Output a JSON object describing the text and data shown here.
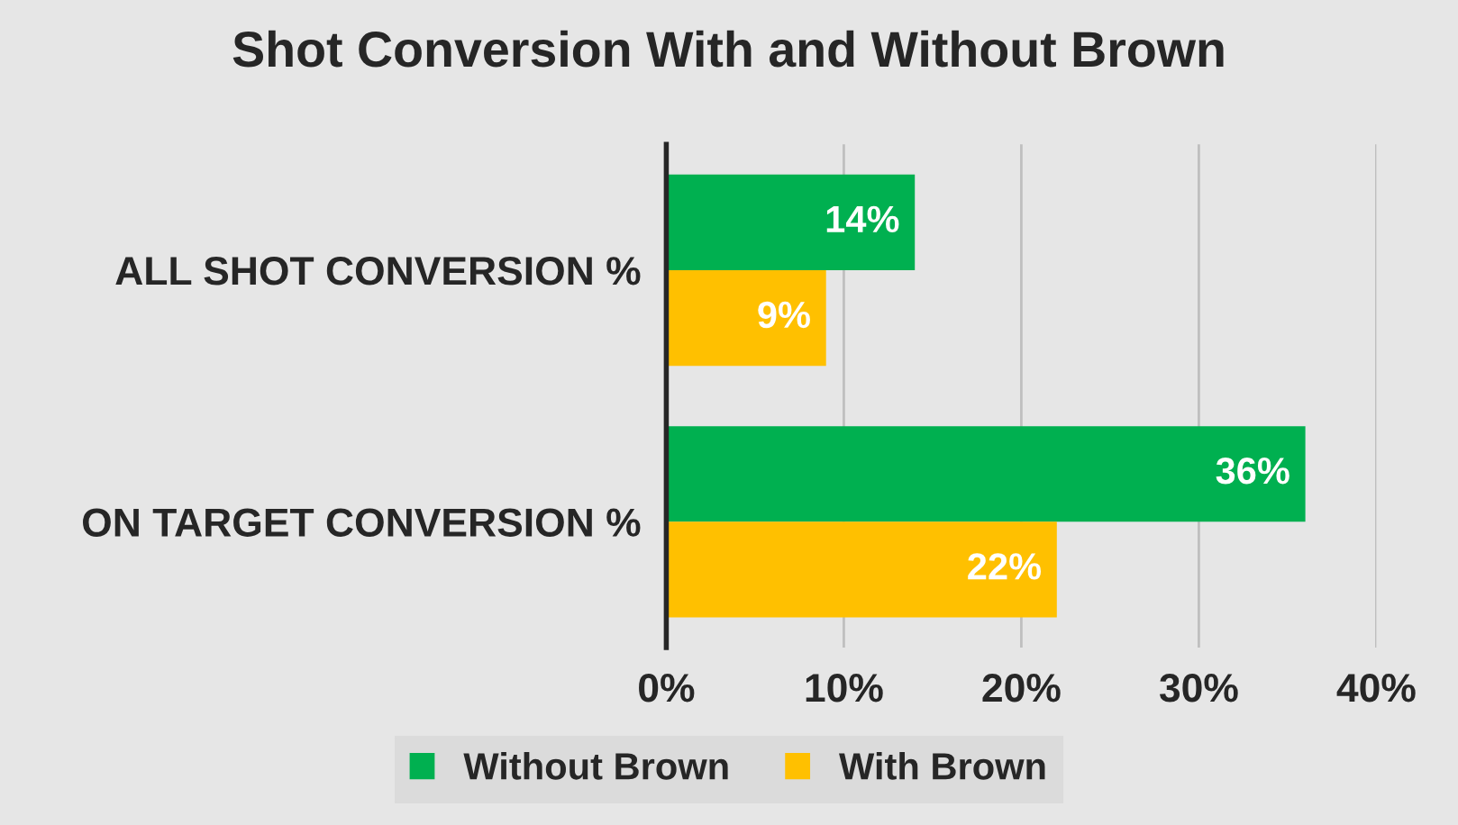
{
  "chart_data": {
    "type": "bar",
    "orientation": "horizontal",
    "title": "Shot Conversion With and Without Brown",
    "categories": [
      "ALL SHOT CONVERSION %",
      "ON TARGET CONVERSION %"
    ],
    "series": [
      {
        "name": "Without Brown",
        "color": "#00b050",
        "values": [
          14,
          36
        ],
        "value_labels": [
          "14%",
          "36%"
        ]
      },
      {
        "name": "With Brown",
        "color": "#ffc000",
        "values": [
          9,
          22
        ],
        "value_labels": [
          "9%",
          "22%"
        ]
      }
    ],
    "xlim": [
      0,
      40
    ],
    "xticks": [
      {
        "value": 0,
        "label": "0%"
      },
      {
        "value": 10,
        "label": "10%"
      },
      {
        "value": 20,
        "label": "20%"
      },
      {
        "value": 30,
        "label": "30%"
      },
      {
        "value": 40,
        "label": "40%"
      }
    ],
    "grid": "x",
    "legend": "bottom"
  }
}
